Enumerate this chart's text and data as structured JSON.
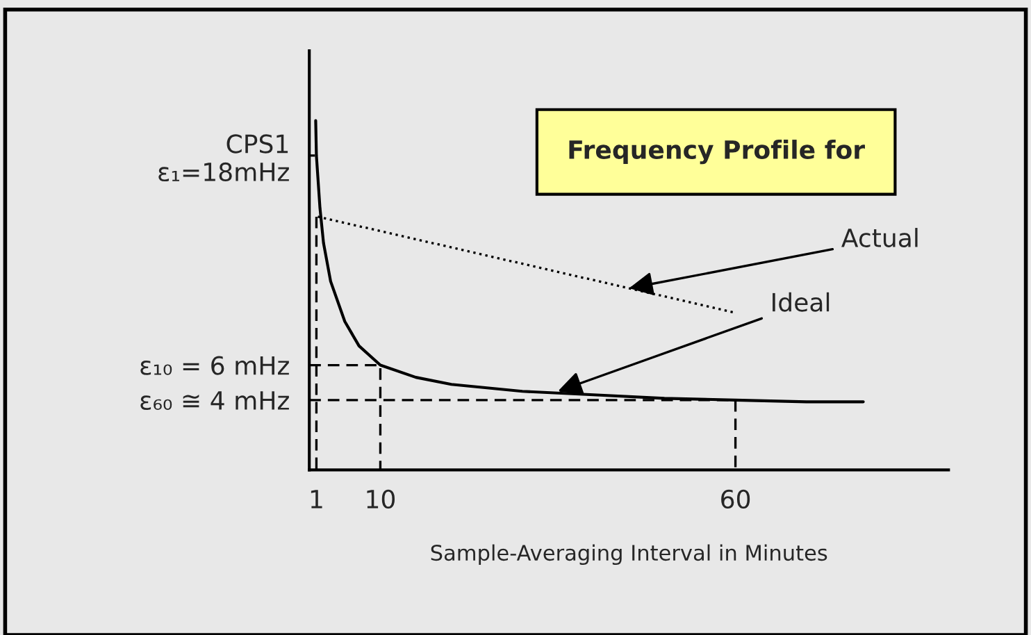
{
  "chart_data": {
    "type": "line",
    "title": "Frequency Profile for",
    "xlabel": "Sample-Averaging Interval in Minutes",
    "xlim": [
      0,
      90
    ],
    "ylim": [
      0,
      24
    ],
    "xticks": [
      1,
      10,
      60
    ],
    "yticks": [
      {
        "value": 4,
        "label": "ε₆₀ ≅ 4 mHz"
      },
      {
        "value": 6,
        "label": "ε₁₀ = 6 mHz"
      },
      {
        "value": 18,
        "label": "CPS1\nε₁=18mHz"
      }
    ],
    "series": [
      {
        "color": "#000000",
        "line_style": "solid",
        "x": [
          0.9,
          1,
          1.5,
          2,
          3,
          5,
          7,
          10,
          15,
          20,
          30,
          40,
          50,
          60,
          70,
          78
        ],
        "values": [
          20,
          18,
          15,
          13,
          10.8,
          8.5,
          7.1,
          6,
          5.3,
          4.9,
          4.5,
          4.3,
          4.1,
          4,
          3.9,
          3.9
        ]
      },
      {
        "color": "#000000",
        "line_style": "dotted",
        "x": [
          1.2,
          60
        ],
        "values": [
          14.5,
          9
        ]
      },
      {
        "color": "#000000",
        "line_style": "dashed",
        "x": [
          0,
          0.8
        ],
        "values": [
          18,
          18
        ]
      },
      {
        "color": "#000000",
        "line_style": "dashed",
        "x": [
          1,
          1
        ],
        "values": [
          14.5,
          0
        ]
      },
      {
        "color": "#000000",
        "line_style": "dashed",
        "x": [
          0,
          10,
          10
        ],
        "values": [
          6,
          6,
          0
        ]
      },
      {
        "color": "#000000",
        "line_style": "dashed",
        "x": [
          0,
          60,
          60
        ],
        "values": [
          4,
          4,
          0
        ]
      }
    ],
    "annotations": [
      {
        "text": "Actual",
        "x": 45,
        "y": 10.4
      },
      {
        "text": "Ideal",
        "x": 35,
        "y": 4.5
      }
    ],
    "grid": false,
    "legend": false
  }
}
